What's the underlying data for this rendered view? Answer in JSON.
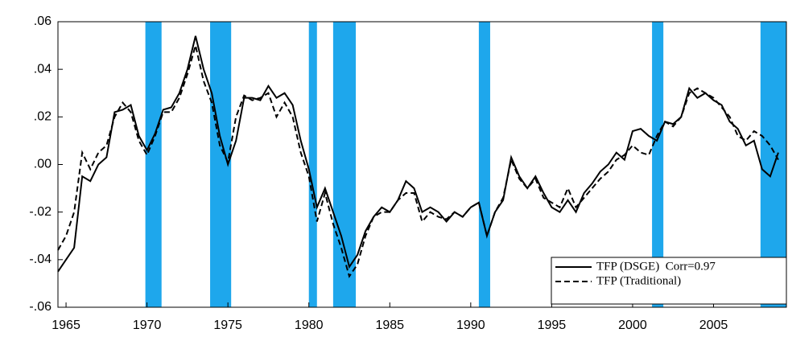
{
  "chart_data": {
    "type": "line",
    "x": [
      1964.5,
      1965,
      1965.5,
      1966,
      1966.5,
      1967,
      1967.5,
      1968,
      1968.5,
      1969,
      1969.5,
      1970,
      1970.5,
      1971,
      1971.5,
      1972,
      1972.5,
      1973,
      1973.5,
      1974,
      1974.5,
      1975,
      1975.5,
      1976,
      1976.5,
      1977,
      1977.5,
      1978,
      1978.5,
      1979,
      1979.5,
      1980,
      1980.5,
      1981,
      1981.5,
      1982,
      1982.5,
      1983,
      1983.5,
      1984,
      1984.5,
      1985,
      1985.5,
      1986,
      1986.5,
      1987,
      1987.5,
      1988,
      1988.5,
      1989,
      1989.5,
      1990,
      1990.5,
      1991,
      1991.5,
      1992,
      1992.5,
      1993,
      1993.5,
      1994,
      1994.5,
      1995,
      1995.5,
      1996,
      1996.5,
      1997,
      1997.5,
      1998,
      1998.5,
      1999,
      1999.5,
      2000,
      2000.5,
      2001,
      2001.5,
      2002,
      2002.5,
      2003,
      2003.5,
      2004,
      2004.5,
      2005,
      2005.5,
      2006,
      2006.5,
      2007,
      2007.5,
      2008,
      2008.5,
      2009
    ],
    "series": [
      {
        "name": "TFP (DSGE)  Corr=0.97",
        "color": "#000000",
        "dash": "solid",
        "values": [
          -0.045,
          -0.04,
          -0.035,
          -0.005,
          -0.007,
          0,
          0.003,
          0.022,
          0.023,
          0.025,
          0.012,
          0.006,
          0.013,
          0.023,
          0.024,
          0.03,
          0.04,
          0.054,
          0.04,
          0.03,
          0.012,
          0,
          0.01,
          0.028,
          0.028,
          0.027,
          0.033,
          0.028,
          0.03,
          0.025,
          0.01,
          -0.002,
          -0.018,
          -0.01,
          -0.02,
          -0.03,
          -0.043,
          -0.038,
          -0.028,
          -0.022,
          -0.018,
          -0.02,
          -0.015,
          -0.007,
          -0.01,
          -0.02,
          -0.018,
          -0.02,
          -0.024,
          -0.02,
          -0.022,
          -0.018,
          -0.016,
          -0.03,
          -0.02,
          -0.015,
          0.003,
          -0.005,
          -0.01,
          -0.005,
          -0.012,
          -0.018,
          -0.02,
          -0.015,
          -0.02,
          -0.012,
          -0.008,
          -0.003,
          0,
          0.005,
          0.002,
          0.014,
          0.015,
          0.012,
          0.01,
          0.018,
          0.017,
          0.02,
          0.032,
          0.028,
          0.03,
          0.027,
          0.025,
          0.018,
          0.015,
          0.008,
          0.01,
          -0.002,
          -0.005,
          0.005
        ]
      },
      {
        "name": "TFP (Traditional)",
        "color": "#000000",
        "dash": "dashed",
        "values": [
          -0.036,
          -0.03,
          -0.02,
          0.005,
          -0.002,
          0.005,
          0.008,
          0.02,
          0.026,
          0.022,
          0.01,
          0.004,
          0.012,
          0.022,
          0.022,
          0.028,
          0.038,
          0.05,
          0.035,
          0.026,
          0.008,
          0.001,
          0.02,
          0.029,
          0.027,
          0.028,
          0.03,
          0.02,
          0.026,
          0.02,
          0.005,
          -0.005,
          -0.024,
          -0.012,
          -0.025,
          -0.035,
          -0.047,
          -0.042,
          -0.03,
          -0.022,
          -0.02,
          -0.02,
          -0.015,
          -0.012,
          -0.012,
          -0.024,
          -0.02,
          -0.022,
          -0.023,
          -0.02,
          -0.022,
          -0.018,
          -0.016,
          -0.03,
          -0.02,
          -0.014,
          0.002,
          -0.006,
          -0.01,
          -0.006,
          -0.014,
          -0.016,
          -0.018,
          -0.01,
          -0.018,
          -0.014,
          -0.01,
          -0.006,
          -0.003,
          0.002,
          0.004,
          0.008,
          0.005,
          0.004,
          0.012,
          0.018,
          0.016,
          0.02,
          0.03,
          0.032,
          0.03,
          0.028,
          0.024,
          0.02,
          0.012,
          0.01,
          0.014,
          0.012,
          0.008,
          0.002
        ]
      }
    ],
    "shaded_regions": {
      "color": "#1ea7ec",
      "ranges": [
        [
          1969.9,
          1970.9
        ],
        [
          1973.9,
          1975.2
        ],
        [
          1980.0,
          1980.5
        ],
        [
          1981.5,
          1982.9
        ],
        [
          1990.5,
          1991.2
        ],
        [
          2001.2,
          2001.9
        ],
        [
          2007.9,
          2009.5
        ]
      ]
    },
    "xlim": [
      1964.5,
      2009.5
    ],
    "xticks": [
      1965,
      1970,
      1975,
      1980,
      1985,
      1990,
      1995,
      2000,
      2005
    ],
    "ylim": [
      -0.06,
      0.06
    ],
    "yticks": [
      {
        "value": -0.06,
        "label": "-.06"
      },
      {
        "value": -0.04,
        "label": "-.04"
      },
      {
        "value": -0.02,
        "label": "-.02"
      },
      {
        "value": 0,
        "label": ".00"
      },
      {
        "value": 0.02,
        "label": ".02"
      },
      {
        "value": 0.04,
        "label": ".04"
      },
      {
        "value": 0.06,
        "label": ".06"
      }
    ],
    "legend": "bottom-right"
  }
}
